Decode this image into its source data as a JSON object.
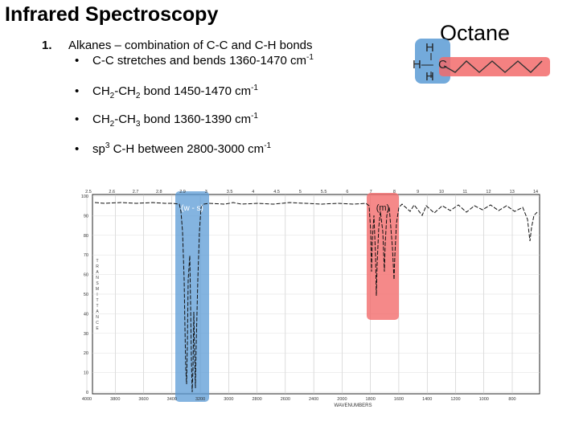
{
  "title": "Infrared Spectroscopy",
  "octane": "Octane",
  "item": {
    "number": "1.",
    "heading": "Alkanes",
    "text": " – combination of C-C and C-H bonds"
  },
  "bullets": {
    "b1": {
      "dot": "•",
      "text": "C-C stretches and bends 1360-1470 cm",
      "sup": "-1"
    },
    "b2": {
      "dot": "•",
      "a": "CH",
      "a_sub": "2",
      "b": "-CH",
      "b_sub": "2",
      "c": " bond 1450-1470 cm",
      "sup": "-1"
    },
    "b3": {
      "dot": "•",
      "a": "CH",
      "a_sub": "2",
      "b": "-CH",
      "b_sub": "3",
      "c": " bond 1360-1390 cm",
      "sup": "-1"
    },
    "b4": {
      "dot": "•",
      "a": "sp",
      "a_sup": "3",
      "c": " C-H between 2800-3000 cm",
      "sup": "-1"
    }
  },
  "structure": {
    "h_top": "H",
    "h_left": "H—",
    "c": "C",
    "h_bottom": "H"
  },
  "spectrum": {
    "wavelength_ticks": [
      "2.5",
      "2.6",
      "2.7",
      "2.8",
      "2.9",
      "3",
      "3.5",
      "4",
      "4.5",
      "5",
      "5.5",
      "6",
      "7",
      "8",
      "9",
      "10",
      "11",
      "12",
      "13",
      "14"
    ],
    "wavenumber_ticks": [
      "4000",
      "3800",
      "3600",
      "3400",
      "3200",
      "3000",
      "2800",
      "2600",
      "2400",
      "2000",
      "1800",
      "1600",
      "1400",
      "1200",
      "1000",
      "800"
    ],
    "transmittance_ticks": [
      "100",
      "90",
      "80",
      "70",
      "60",
      "50",
      "40",
      "30",
      "20",
      "10",
      "0"
    ],
    "xlabel": "WAVENUMBERS",
    "ylabel": "TRANSMITTANCE",
    "highlight_blue_label": "(w - s)",
    "highlight_red_label": "(m)",
    "colors": {
      "blue": "#5b9bd5",
      "red": "#f26b6b"
    }
  }
}
